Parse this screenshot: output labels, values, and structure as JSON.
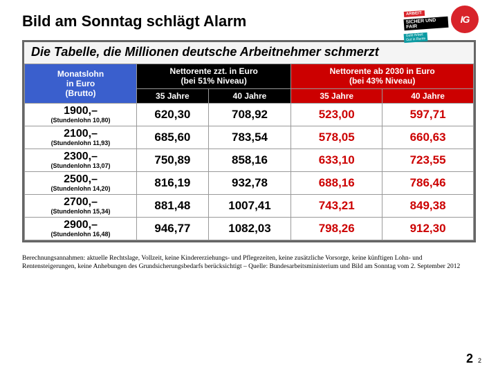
{
  "title": "Bild am Sonntag schlägt Alarm",
  "logos": {
    "sicher_line1": "ARBEIT:",
    "sicher_line2": "SICHER UND FAIR",
    "sicher_line3a": "Gute Arbeit",
    "sicher_line3b": "Gut in Rente",
    "igm": "IG"
  },
  "table": {
    "headline": "Die Tabelle, die Millionen deutsche Arbeitnehmer schmerzt",
    "hdr_salary_l1": "Monatslohn",
    "hdr_salary_l2": "in Euro",
    "hdr_salary_l3": "(Brutto)",
    "hdr_now_l1": "Nettorente zzt. in Euro",
    "hdr_now_l2": "(bei 51% Niveau)",
    "hdr_2030_l1": "Nettorente ab 2030 in Euro",
    "hdr_2030_l2": "(bei 43% Niveau)",
    "hdr_35": "35 Jahre",
    "hdr_40": "40 Jahre",
    "rows": [
      {
        "salary": "1900,–",
        "hourly": "(Stundenlohn 10,80)",
        "n35": "620,30",
        "n40": "708,92",
        "r35": "523,00",
        "r40": "597,71"
      },
      {
        "salary": "2100,–",
        "hourly": "(Stundenlohn 11,93)",
        "n35": "685,60",
        "n40": "783,54",
        "r35": "578,05",
        "r40": "660,63"
      },
      {
        "salary": "2300,–",
        "hourly": "(Stundenlohn 13,07)",
        "n35": "750,89",
        "n40": "858,16",
        "r35": "633,10",
        "r40": "723,55"
      },
      {
        "salary": "2500,–",
        "hourly": "(Stundenlohn 14,20)",
        "n35": "816,19",
        "n40": "932,78",
        "r35": "688,16",
        "r40": "786,46"
      },
      {
        "salary": "2700,–",
        "hourly": "(Stundenlohn 15,34)",
        "n35": "881,48",
        "n40": "1007,41",
        "r35": "743,21",
        "r40": "849,38"
      },
      {
        "salary": "2900,–",
        "hourly": "(Stundenlohn 16,48)",
        "n35": "946,77",
        "n40": "1082,03",
        "r35": "798,26",
        "r40": "912,30"
      }
    ]
  },
  "footnote": "Berechnungsannahmen: aktuelle Rechtslage, Vollzeit, keine Kindererziehungs- und Pflegezeiten, keine zusätzliche Vorsorge, keine künftigen Lohn- und Rentensteigerungen, keine Anhebungen des Grundsicherungsbedarfs berücksichtigt – Quelle: Bundesarbeitsministerium und Bild am Sonntag vom 2. September 2012",
  "pagenum_big": "2",
  "pagenum_small": "2",
  "colors": {
    "blue": "#3a5fcd",
    "black": "#000000",
    "red": "#cc0000",
    "border": "#666666"
  }
}
